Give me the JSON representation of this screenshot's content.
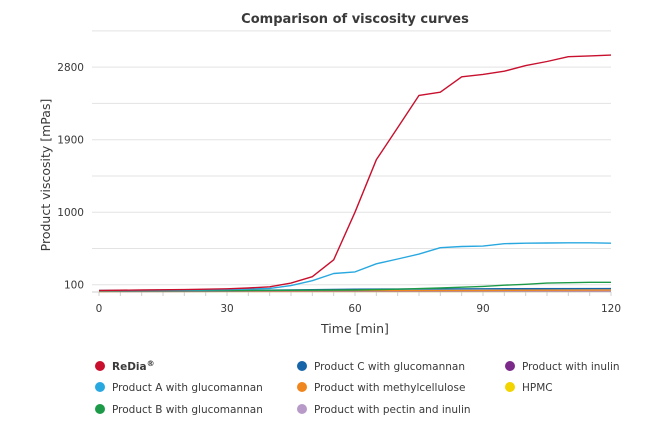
{
  "chart_data": {
    "type": "line",
    "title": "Comparison of viscosity curves",
    "xlabel": "Time [min]",
    "ylabel": "Product viscosity [mPas]",
    "xlim": [
      0,
      120
    ],
    "ylim": [
      10,
      3100
    ],
    "x_ticks": [
      0,
      30,
      60,
      90,
      120
    ],
    "x_tick_labels": [
      "0",
      "30",
      "60",
      "90",
      "120"
    ],
    "y_ticks": [
      100,
      1000,
      1900,
      2800
    ],
    "y_tick_labels": [
      "100",
      "1000",
      "1900",
      "2800"
    ],
    "x_minor_ticks_every": 5,
    "grid": true,
    "legend_position": "bottom",
    "series": [
      {
        "name": "ReDia",
        "legend_label": "ReDia",
        "legend_suffix": "®",
        "bold": true,
        "color": "#c8102e",
        "x": [
          0,
          10,
          20,
          30,
          35,
          40,
          45,
          50,
          55,
          60,
          65,
          70,
          75,
          80,
          85,
          90,
          95,
          100,
          105,
          110,
          115,
          120
        ],
        "y": [
          30,
          35,
          40,
          50,
          60,
          75,
          120,
          200,
          410,
          1000,
          1650,
          2050,
          2450,
          2490,
          2680,
          2710,
          2750,
          2820,
          2870,
          2930,
          2940,
          2950
        ]
      },
      {
        "name": "Product A with glucomannan",
        "color": "#29a8e0",
        "x": [
          0,
          10,
          20,
          30,
          40,
          45,
          50,
          55,
          60,
          65,
          70,
          75,
          80,
          85,
          90,
          95,
          100,
          105,
          110,
          115,
          120
        ],
        "y": [
          30,
          32,
          35,
          40,
          55,
          90,
          150,
          240,
          260,
          360,
          420,
          480,
          560,
          575,
          580,
          610,
          615,
          618,
          620,
          620,
          615
        ]
      },
      {
        "name": "Product B with glucomannan",
        "color": "#1d9a48",
        "x": [
          0,
          30,
          60,
          70,
          80,
          85,
          90,
          95,
          100,
          105,
          110,
          115,
          120
        ],
        "y": [
          25,
          28,
          35,
          45,
          60,
          70,
          80,
          95,
          105,
          120,
          125,
          130,
          130
        ]
      },
      {
        "name": "Product C with glucomannan",
        "color": "#1565a8",
        "x": [
          0,
          30,
          60,
          90,
          120
        ],
        "y": [
          25,
          27,
          45,
          50,
          52
        ]
      },
      {
        "name": "Product with methylcellulose",
        "color": "#f0861e",
        "x": [
          0,
          30,
          60,
          90,
          120
        ],
        "y": [
          22,
          24,
          27,
          30,
          35
        ]
      },
      {
        "name": "Product with pectin and inulin",
        "color": "#b89ac8",
        "x": [
          0,
          30,
          60,
          90,
          120
        ],
        "y": [
          20,
          20,
          22,
          22,
          23
        ]
      },
      {
        "name": "Product with inulin",
        "color": "#7b2a8a",
        "x": [
          0,
          30,
          60,
          90,
          120
        ],
        "y": [
          18,
          19,
          20,
          21,
          22
        ]
      },
      {
        "name": "HPMC",
        "color": "#f2d400",
        "x": [
          0,
          30,
          60,
          90,
          120
        ],
        "y": [
          16,
          17,
          18,
          18,
          19
        ]
      }
    ],
    "legend_order": [
      "ReDia",
      "Product C with glucomannan",
      "Product with inulin",
      "Product A with glucomannan",
      "Product with methylcellulose",
      "HPMC",
      "Product B with glucomannan",
      "Product with pectin and inulin"
    ]
  }
}
